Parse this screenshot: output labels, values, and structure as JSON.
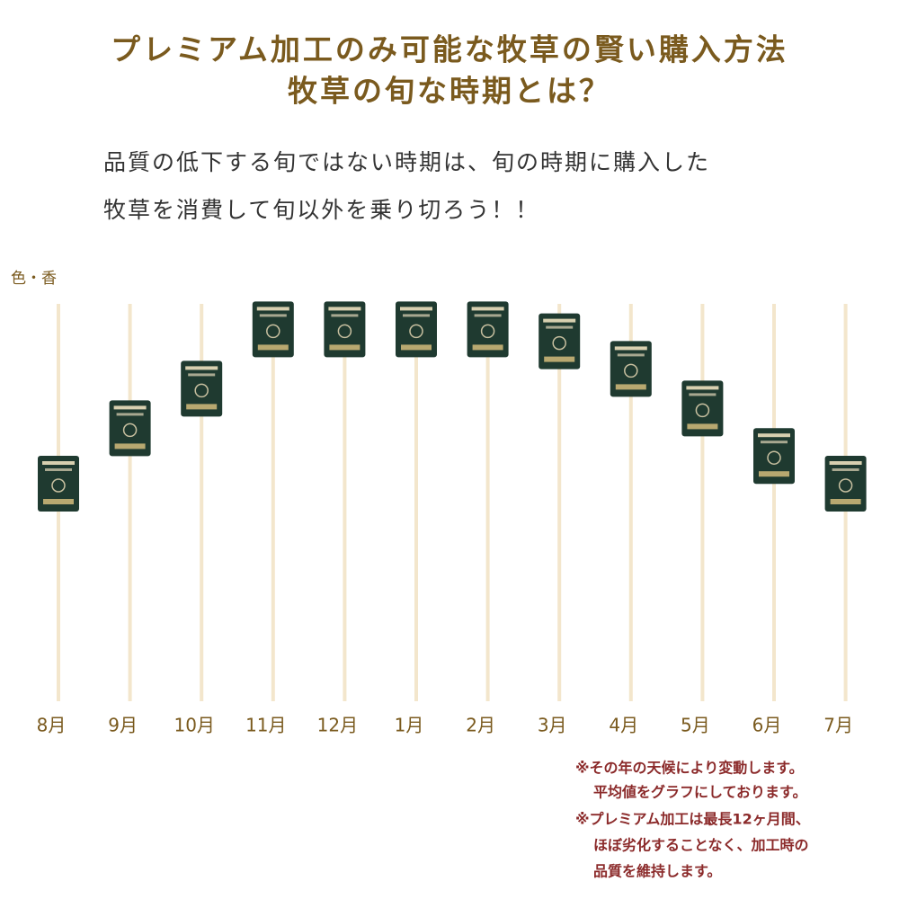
{
  "chart_data": {
    "type": "pictograph",
    "title": [
      "プレミアム加工のみ可能な牧草の賢い購入方法",
      "牧草の旬な時期とは？"
    ],
    "description": [
      "品質の低下する旬ではない時期は、旬の時期に購入した",
      "牧草を消費して旬以外を乗り切ろう！！"
    ],
    "y_label": "色・香",
    "categories": [
      "8月",
      "9月",
      "10月",
      "11月",
      "12月",
      "1月",
      "2月",
      "3月",
      "4月",
      "5月",
      "6月",
      "7月"
    ],
    "values": [
      55,
      69,
      79,
      94,
      94,
      94,
      94,
      91,
      84,
      74,
      62,
      55
    ],
    "ylim": [
      0,
      100
    ],
    "color": "#1f3a30",
    "grid_color": "#f3e6cc",
    "notes": [
      "※その年の天候により変動します。",
      "平均値をグラフにしております。",
      "※プレミアム加工は最長12ヶ月間、",
      "ほぼ劣化することなく、加工時の",
      "品質を維持します。"
    ]
  }
}
